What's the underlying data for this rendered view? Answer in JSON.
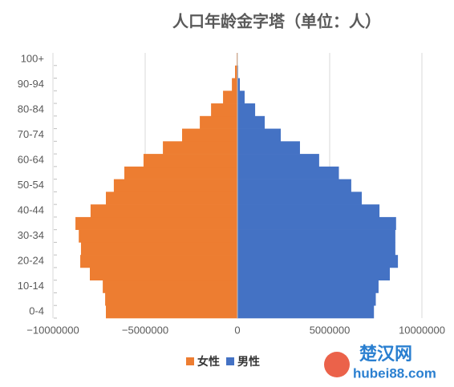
{
  "chart_data": {
    "type": "pyramid",
    "title": "人口年龄金字塔（单位：人）",
    "categories": [
      "0-4",
      null,
      "10-14",
      null,
      "20-24",
      null,
      "30-34",
      null,
      "40-44",
      null,
      "50-54",
      null,
      "60-64",
      null,
      "70-74",
      null,
      "80-84",
      null,
      "90-94",
      null,
      "100+"
    ],
    "series": [
      {
        "name": "女性",
        "color": "#ed7d31",
        "values": [
          -7130000,
          -7170000,
          -7300000,
          -8000000,
          -8520000,
          -8480000,
          -8600000,
          -8780000,
          -7960000,
          -7130000,
          -6700000,
          -6130000,
          -5090000,
          -4040000,
          -3000000,
          -2040000,
          -1430000,
          -780000,
          -300000,
          -130000,
          -40000
        ]
      },
      {
        "name": "男性",
        "color": "#4472c4",
        "values": [
          7400000,
          7500000,
          7650000,
          8260000,
          8700000,
          8560000,
          8560000,
          8600000,
          7700000,
          6740000,
          6170000,
          5500000,
          4430000,
          3390000,
          2350000,
          1480000,
          960000,
          390000,
          130000,
          40000,
          10000
        ]
      }
    ],
    "xlim": [
      -11000000,
      11000000
    ],
    "xticks": [
      {
        "value": -10000000,
        "label": "−10000000"
      },
      {
        "value": -5000000,
        "label": "−5000000"
      },
      0,
      5000000,
      10000000
    ],
    "grid": true,
    "watermark": {
      "name": "楚汉网",
      "url": "hubei88.com"
    }
  }
}
